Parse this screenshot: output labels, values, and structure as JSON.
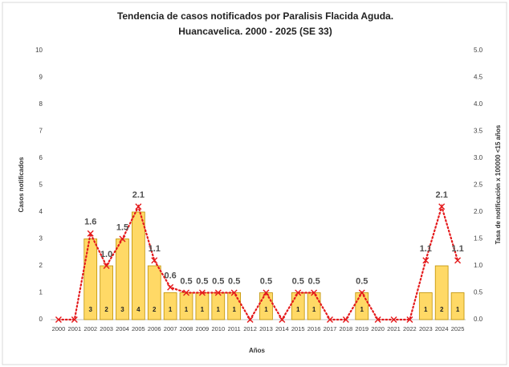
{
  "chart_data": {
    "type": "bar-line",
    "title_lines": [
      "Tendencia de casos notificados por Paralisis Flacida Aguda.",
      "Huancavelica. 2000 - 2025 (SE 33)"
    ],
    "x_label": "Años",
    "y_label": "Casos notificados",
    "y2_label": "Tasa de notificación x 100000 <15 años",
    "categories": [
      "2000",
      "2001",
      "2002",
      "2003",
      "2004",
      "2005",
      "2006",
      "2007",
      "2008",
      "2009",
      "2010",
      "2011",
      "2012",
      "2013",
      "2014",
      "2015",
      "2016",
      "2017",
      "2018",
      "2019",
      "2020",
      "2021",
      "2022",
      "2023",
      "2024",
      "2025"
    ],
    "series": [
      {
        "type": "bar",
        "color": "#FFD966",
        "edge_color": "#BF9000",
        "values": [
          0,
          0,
          3,
          2,
          3,
          4,
          2,
          1,
          1,
          1,
          1,
          1,
          0,
          1,
          0,
          1,
          1,
          0,
          0,
          1,
          0,
          0,
          0,
          1,
          2,
          1
        ],
        "value_labels": [
          null,
          null,
          "3",
          "2",
          "3",
          "4",
          "2",
          "1",
          "1",
          "1",
          "1",
          "1",
          null,
          "1",
          null,
          "1",
          "1",
          null,
          null,
          "1",
          null,
          null,
          null,
          "1",
          "2",
          "1"
        ]
      },
      {
        "type": "line",
        "axis": "y2",
        "color": "#E41A1C",
        "values": [
          0,
          0,
          1.6,
          1.0,
          1.5,
          2.1,
          1.1,
          0.6,
          0.5,
          0.5,
          0.5,
          0.5,
          0,
          0.5,
          0,
          0.5,
          0.5,
          0,
          0,
          0.5,
          0,
          0,
          0,
          1.1,
          2.1,
          1.1
        ],
        "value_labels": [
          null,
          null,
          "1.6",
          "1.0",
          "1.5",
          "2.1",
          "1.1",
          "0.6",
          "0.5",
          "0.5",
          "0.5",
          "0.5",
          null,
          "0.5",
          null,
          "0.5",
          "0.5",
          null,
          null,
          "0.5",
          null,
          null,
          null,
          "1.1",
          "2.1",
          "1.1"
        ]
      }
    ],
    "ylim": [
      0,
      10
    ],
    "yticks": [
      0,
      1,
      2,
      3,
      4,
      5,
      6,
      7,
      8,
      9,
      10
    ],
    "y2lim": [
      0,
      5
    ],
    "y2ticks": [
      {
        "value": 0,
        "label": "0.0"
      },
      {
        "value": 0.5,
        "label": "0.5"
      },
      {
        "value": 1,
        "label": "1.0"
      },
      {
        "value": 1.5,
        "label": "1.5"
      },
      {
        "value": 2,
        "label": "2.0"
      },
      {
        "value": 2.5,
        "label": "2.5"
      },
      {
        "value": 3,
        "label": "3.0"
      },
      {
        "value": 3.5,
        "label": "3.5"
      },
      {
        "value": 4,
        "label": "4.0"
      },
      {
        "value": 4.5,
        "label": "4.5"
      },
      {
        "value": 5,
        "label": "5.0"
      }
    ]
  }
}
